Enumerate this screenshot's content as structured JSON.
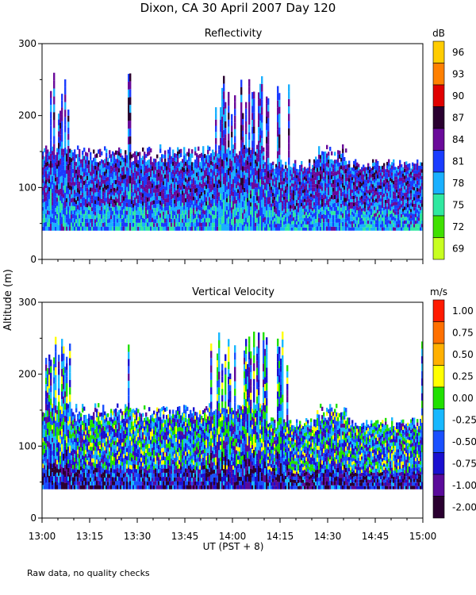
{
  "title": "Dixon, CA 30 April 2007  Day 120",
  "ylabel": "Altitude (m)",
  "xlabel": "UT   (PST + 8)",
  "footnote": "Raw data, no quality checks",
  "x_ticks": [
    "13:00",
    "13:15",
    "13:30",
    "13:45",
    "14:00",
    "14:15",
    "14:30",
    "14:45",
    "15:00"
  ],
  "x_range_minutes": [
    0,
    120
  ],
  "y_ticks": [
    0,
    100,
    200,
    300
  ],
  "chart_data": [
    {
      "type": "heatmap",
      "title": "Reflectivity",
      "unit": "dB",
      "ylim": [
        0,
        300
      ],
      "colorbar_labels": [
        "96",
        "93",
        "90",
        "87",
        "84",
        "81",
        "78",
        "75",
        "72",
        "69"
      ],
      "colorbar_colors": [
        "#ffcc00",
        "#ff8000",
        "#e00000",
        "#2a0030",
        "#6a0a9a",
        "#1a3cff",
        "#1ab0ff",
        "#30e8a0",
        "#40e000",
        "#c8ff20"
      ],
      "data_floor_m": 40,
      "main_top_m": 160,
      "mid_top_m": 140,
      "plume_top_m": 260,
      "plume_windows_min": [
        [
          1,
          9
        ],
        [
          27,
          28
        ],
        [
          53,
          72
        ],
        [
          74,
          78
        ],
        [
          94,
          95
        ],
        [
          119,
          120
        ]
      ]
    },
    {
      "type": "heatmap",
      "title": "Vertical Velocity",
      "unit": "m/s",
      "ylim": [
        0,
        300
      ],
      "colorbar_labels": [
        "1.00",
        "0.75",
        "0.50",
        "0.25",
        "0.00",
        "-0.25",
        "-0.50",
        "-0.75",
        "-1.00",
        "-2.00"
      ],
      "colorbar_colors": [
        "#ff1a00",
        "#ff7000",
        "#ffb000",
        "#ffff00",
        "#20e000",
        "#18b8ff",
        "#1a50ff",
        "#1a10d0",
        "#5a0a9a",
        "#2a0030"
      ],
      "data_floor_m": 40,
      "main_top_m": 160,
      "mid_top_m": 140,
      "plume_top_m": 260,
      "plume_windows_min": [
        [
          1,
          9
        ],
        [
          27,
          28
        ],
        [
          53,
          72
        ],
        [
          74,
          78
        ],
        [
          94,
          95
        ],
        [
          119,
          120
        ]
      ]
    }
  ],
  "colors": {
    "background": "#ffffff",
    "axis": "#000000"
  }
}
